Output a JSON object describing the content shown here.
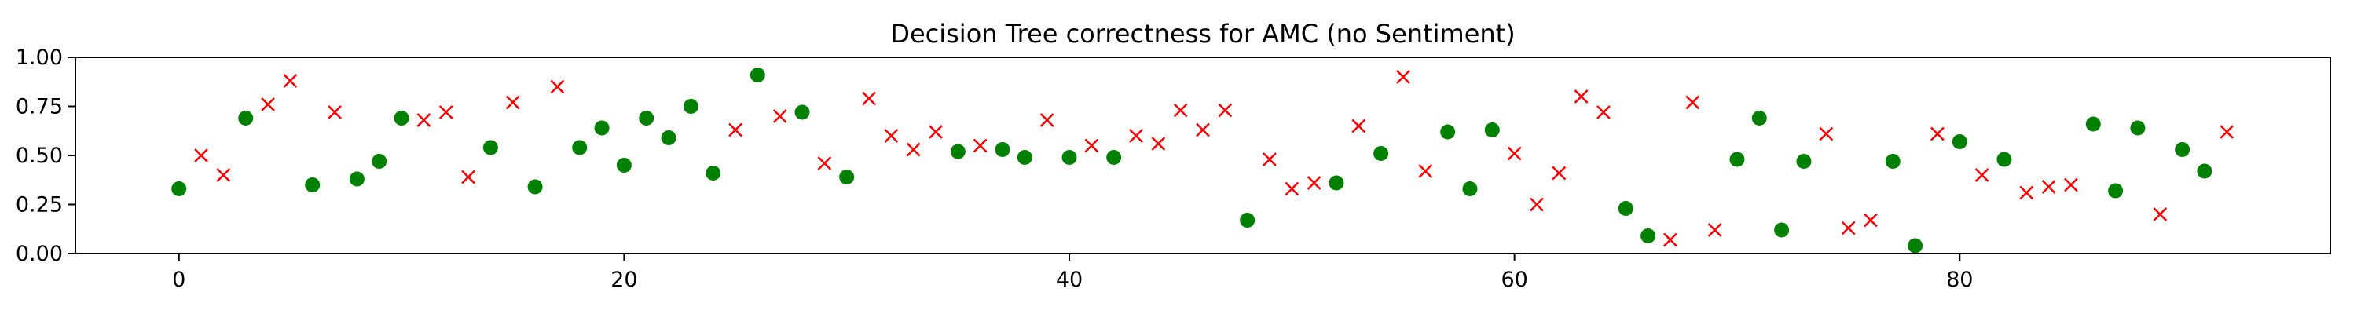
{
  "chart_data": {
    "type": "scatter",
    "title": "Decision Tree correctness for AMC (no Sentiment)",
    "xlabel": "",
    "ylabel": "",
    "xlim": [
      -4.65,
      96.65
    ],
    "ylim": [
      0.0,
      1.0
    ],
    "x_ticks": [
      0,
      20,
      40,
      60,
      80
    ],
    "y_ticks": [
      0.0,
      0.25,
      0.5,
      0.75,
      1.0
    ],
    "y_tick_labels": [
      "0.00",
      "0.25",
      "0.50",
      "0.75",
      "1.00"
    ],
    "grid": false,
    "legend": "none",
    "series": [
      {
        "marker": "circle",
        "color": "#008000",
        "x": [
          0,
          3,
          6,
          8,
          9,
          10,
          14,
          16,
          18,
          19,
          20,
          21,
          22,
          23,
          24,
          26,
          28,
          30,
          35,
          37,
          38,
          40,
          42,
          48,
          52,
          54,
          57,
          58,
          59,
          65,
          66,
          70,
          71,
          72,
          73,
          77,
          78,
          80,
          82,
          86,
          87,
          88,
          90,
          91
        ],
        "y": [
          0.33,
          0.69,
          0.35,
          0.38,
          0.47,
          0.69,
          0.54,
          0.34,
          0.54,
          0.64,
          0.45,
          0.69,
          0.59,
          0.75,
          0.41,
          0.91,
          0.72,
          0.39,
          0.52,
          0.53,
          0.49,
          0.49,
          0.49,
          0.17,
          0.36,
          0.51,
          0.62,
          0.33,
          0.63,
          0.23,
          0.09,
          0.48,
          0.69,
          0.12,
          0.47,
          0.47,
          0.04,
          0.57,
          0.48,
          0.66,
          0.32,
          0.64,
          0.53,
          0.42
        ]
      },
      {
        "marker": "x",
        "color": "#ff0000",
        "x": [
          1,
          2,
          4,
          5,
          7,
          11,
          12,
          13,
          15,
          17,
          25,
          27,
          29,
          31,
          32,
          33,
          34,
          36,
          39,
          41,
          43,
          44,
          45,
          46,
          47,
          49,
          50,
          51,
          53,
          55,
          56,
          60,
          61,
          62,
          63,
          64,
          67,
          68,
          69,
          74,
          75,
          76,
          79,
          81,
          83,
          84,
          85,
          89,
          92
        ],
        "y": [
          0.5,
          0.4,
          0.76,
          0.88,
          0.72,
          0.68,
          0.72,
          0.39,
          0.77,
          0.85,
          0.63,
          0.7,
          0.46,
          0.79,
          0.6,
          0.53,
          0.62,
          0.55,
          0.68,
          0.55,
          0.6,
          0.56,
          0.73,
          0.63,
          0.73,
          0.48,
          0.33,
          0.36,
          0.65,
          0.9,
          0.42,
          0.51,
          0.25,
          0.41,
          0.8,
          0.72,
          0.07,
          0.77,
          0.12,
          0.61,
          0.13,
          0.17,
          0.61,
          0.4,
          0.31,
          0.34,
          0.35,
          0.2,
          0.62
        ]
      }
    ]
  }
}
